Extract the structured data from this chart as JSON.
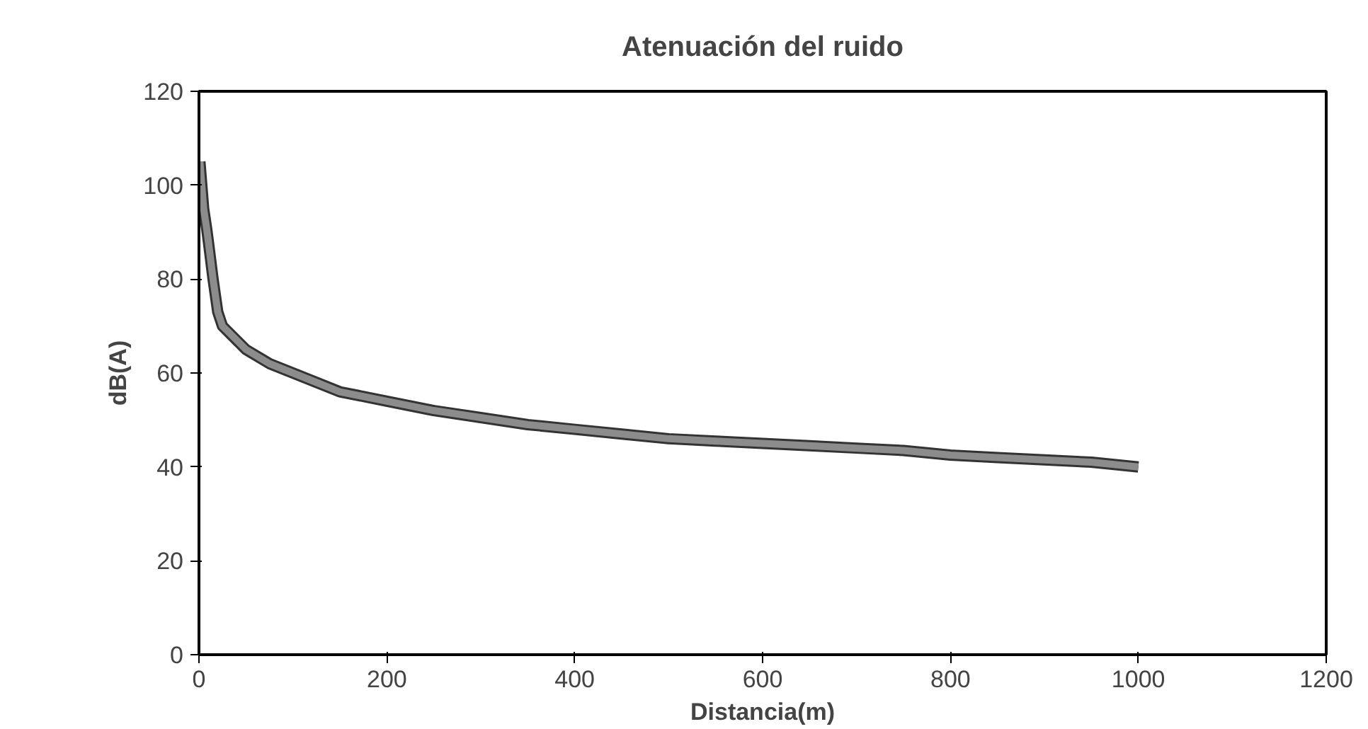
{
  "chart_data": {
    "type": "line",
    "title": "Atenuación del ruido",
    "xlabel": "Distancia(m)",
    "ylabel": "dB(A)",
    "x": [
      1,
      3,
      5,
      8,
      10,
      15,
      20,
      25,
      30,
      40,
      50,
      75,
      100,
      125,
      150,
      200,
      250,
      300,
      350,
      400,
      450,
      500,
      550,
      600,
      650,
      700,
      750,
      800,
      850,
      900,
      950,
      1000
    ],
    "series": [
      {
        "color": "#8c8c8c",
        "values": [
          105,
          100,
          95,
          91,
          88,
          80,
          73,
          70,
          69,
          67,
          65,
          62,
          60,
          58,
          56,
          54,
          52,
          50.5,
          49,
          48,
          47,
          46,
          45.5,
          45,
          44.5,
          44,
          43.5,
          42.5,
          42,
          41.5,
          41,
          40
        ]
      }
    ],
    "xlim": [
      0,
      1200
    ],
    "xticks": [
      0,
      200,
      400,
      600,
      800,
      1000,
      1200
    ],
    "ylim": [
      0,
      120
    ],
    "yticks": [
      0,
      20,
      40,
      60,
      80,
      100,
      120
    ],
    "grid": false,
    "marker": "none",
    "line_style": "solid"
  }
}
